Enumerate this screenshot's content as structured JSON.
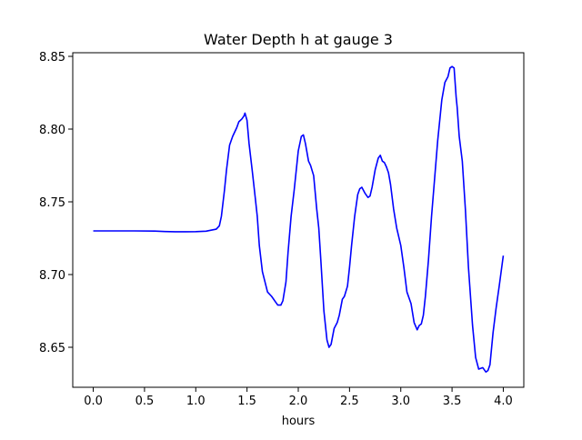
{
  "chart_data": {
    "type": "line",
    "title": "Water Depth h at gauge 3",
    "xlabel": "hours",
    "ylabel": "",
    "xlim": [
      -0.2,
      4.2
    ],
    "ylim": [
      8.6225,
      8.8525
    ],
    "xticks": [
      0.0,
      0.5,
      1.0,
      1.5,
      2.0,
      2.5,
      3.0,
      3.5,
      4.0
    ],
    "xtick_labels": [
      "0.0",
      "0.5",
      "1.0",
      "1.5",
      "2.0",
      "2.5",
      "3.0",
      "3.5",
      "4.0"
    ],
    "yticks": [
      8.65,
      8.7,
      8.75,
      8.8,
      8.85
    ],
    "ytick_labels": [
      "8.65",
      "8.70",
      "8.75",
      "8.80",
      "8.85"
    ],
    "grid": false,
    "series": [
      {
        "color": "#0000ff",
        "x": [
          0.0,
          0.2,
          0.4,
          0.6,
          0.7,
          0.8,
          0.9,
          1.0,
          1.1,
          1.15,
          1.2,
          1.23,
          1.25,
          1.28,
          1.3,
          1.33,
          1.36,
          1.4,
          1.42,
          1.45,
          1.47,
          1.48,
          1.5,
          1.52,
          1.55,
          1.58,
          1.6,
          1.62,
          1.65,
          1.7,
          1.74,
          1.78,
          1.8,
          1.83,
          1.85,
          1.88,
          1.9,
          1.93,
          1.96,
          2.0,
          2.03,
          2.05,
          2.07,
          2.1,
          2.12,
          2.15,
          2.18,
          2.2,
          2.22,
          2.25,
          2.28,
          2.3,
          2.32,
          2.35,
          2.38,
          2.4,
          2.43,
          2.45,
          2.48,
          2.5,
          2.52,
          2.55,
          2.58,
          2.6,
          2.62,
          2.65,
          2.68,
          2.7,
          2.72,
          2.75,
          2.78,
          2.8,
          2.82,
          2.84,
          2.86,
          2.88,
          2.9,
          2.93,
          2.96,
          3.0,
          3.03,
          3.06,
          3.1,
          3.13,
          3.16,
          3.18,
          3.2,
          3.22,
          3.24,
          3.27,
          3.3,
          3.33,
          3.36,
          3.4,
          3.43,
          3.46,
          3.48,
          3.5,
          3.52,
          3.54,
          3.55,
          3.57,
          3.6,
          3.63,
          3.66,
          3.7,
          3.73,
          3.76,
          3.8,
          3.83,
          3.85,
          3.87,
          3.9,
          3.93,
          3.96,
          4.0
        ],
        "y": [
          8.73,
          8.73,
          8.73,
          8.7299,
          8.7296,
          8.7294,
          8.7294,
          8.7295,
          8.7298,
          8.7305,
          8.7312,
          8.7335,
          8.74,
          8.758,
          8.772,
          8.789,
          8.795,
          8.801,
          8.805,
          8.807,
          8.809,
          8.811,
          8.806,
          8.79,
          8.772,
          8.753,
          8.74,
          8.72,
          8.702,
          8.688,
          8.685,
          8.681,
          8.679,
          8.679,
          8.682,
          8.695,
          8.715,
          8.74,
          8.758,
          8.785,
          8.795,
          8.796,
          8.79,
          8.778,
          8.775,
          8.768,
          8.745,
          8.732,
          8.71,
          8.675,
          8.655,
          8.65,
          8.652,
          8.663,
          8.667,
          8.672,
          8.683,
          8.685,
          8.692,
          8.705,
          8.72,
          8.74,
          8.755,
          8.759,
          8.76,
          8.756,
          8.753,
          8.754,
          8.76,
          8.772,
          8.78,
          8.782,
          8.778,
          8.777,
          8.774,
          8.77,
          8.762,
          8.745,
          8.732,
          8.72,
          8.705,
          8.688,
          8.68,
          8.667,
          8.662,
          8.665,
          8.666,
          8.672,
          8.685,
          8.71,
          8.74,
          8.766,
          8.792,
          8.82,
          8.832,
          8.836,
          8.842,
          8.843,
          8.842,
          8.822,
          8.815,
          8.795,
          8.778,
          8.745,
          8.705,
          8.665,
          8.643,
          8.635,
          8.636,
          8.633,
          8.634,
          8.638,
          8.66,
          8.677,
          8.692,
          8.713
        ]
      }
    ]
  }
}
